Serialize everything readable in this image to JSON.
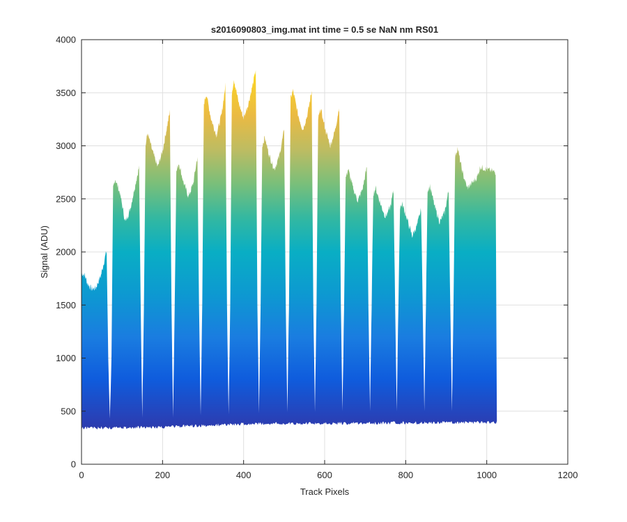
{
  "chart_data": {
    "type": "area",
    "title": "s2016090803_img.mat int time = 0.5 se  NaN nm RS01",
    "xlabel": "Track Pixels",
    "ylabel": "Signal (ADU)",
    "xlim": [
      0,
      1200
    ],
    "ylim": [
      0,
      4000
    ],
    "xticks": [
      0,
      200,
      400,
      600,
      800,
      1000,
      1200
    ],
    "yticks": [
      0,
      500,
      1000,
      1500,
      2000,
      2500,
      3000,
      3500,
      4000
    ],
    "grid": true,
    "colormap": "parula",
    "series": [
      {
        "baseline_values": [
          {
            "x": 0,
            "y": 340
          },
          {
            "x": 200,
            "y": 350
          },
          {
            "x": 400,
            "y": 380
          },
          {
            "x": 600,
            "y": 385
          },
          {
            "x": 800,
            "y": 390
          },
          {
            "x": 1025,
            "y": 395
          }
        ],
        "envelope_values": [
          {
            "x": 0,
            "y": 1800
          },
          {
            "x": 8,
            "y": 1780
          },
          {
            "x": 15,
            "y": 1700
          },
          {
            "x": 25,
            "y": 1650
          },
          {
            "x": 35,
            "y": 1660
          },
          {
            "x": 48,
            "y": 1780
          },
          {
            "x": 58,
            "y": 1950
          },
          {
            "x": 62,
            "y": 2010
          },
          {
            "x": 66,
            "y": 1000
          },
          {
            "x": 70,
            "y": 430
          },
          {
            "x": 74,
            "y": 1000
          },
          {
            "x": 78,
            "y": 2600
          },
          {
            "x": 83,
            "y": 2690
          },
          {
            "x": 95,
            "y": 2550
          },
          {
            "x": 108,
            "y": 2280
          },
          {
            "x": 120,
            "y": 2400
          },
          {
            "x": 132,
            "y": 2620
          },
          {
            "x": 142,
            "y": 2800
          },
          {
            "x": 146,
            "y": 1500
          },
          {
            "x": 150,
            "y": 440
          },
          {
            "x": 154,
            "y": 1500
          },
          {
            "x": 158,
            "y": 3000
          },
          {
            "x": 163,
            "y": 3120
          },
          {
            "x": 175,
            "y": 2950
          },
          {
            "x": 188,
            "y": 2800
          },
          {
            "x": 200,
            "y": 2950
          },
          {
            "x": 212,
            "y": 3200
          },
          {
            "x": 218,
            "y": 3320
          },
          {
            "x": 222,
            "y": 1500
          },
          {
            "x": 226,
            "y": 440
          },
          {
            "x": 230,
            "y": 1500
          },
          {
            "x": 234,
            "y": 2750
          },
          {
            "x": 240,
            "y": 2840
          },
          {
            "x": 252,
            "y": 2650
          },
          {
            "x": 264,
            "y": 2520
          },
          {
            "x": 276,
            "y": 2650
          },
          {
            "x": 286,
            "y": 2900
          },
          {
            "x": 290,
            "y": 1500
          },
          {
            "x": 294,
            "y": 460
          },
          {
            "x": 298,
            "y": 1500
          },
          {
            "x": 302,
            "y": 3400
          },
          {
            "x": 308,
            "y": 3490
          },
          {
            "x": 320,
            "y": 3250
          },
          {
            "x": 333,
            "y": 3100
          },
          {
            "x": 346,
            "y": 3300
          },
          {
            "x": 355,
            "y": 3570
          },
          {
            "x": 359,
            "y": 1500
          },
          {
            "x": 363,
            "y": 470
          },
          {
            "x": 367,
            "y": 1500
          },
          {
            "x": 371,
            "y": 3500
          },
          {
            "x": 376,
            "y": 3630
          },
          {
            "x": 388,
            "y": 3400
          },
          {
            "x": 400,
            "y": 3260
          },
          {
            "x": 412,
            "y": 3400
          },
          {
            "x": 424,
            "y": 3600
          },
          {
            "x": 430,
            "y": 3720
          },
          {
            "x": 434,
            "y": 1500
          },
          {
            "x": 438,
            "y": 480
          },
          {
            "x": 442,
            "y": 1500
          },
          {
            "x": 446,
            "y": 3000
          },
          {
            "x": 452,
            "y": 3080
          },
          {
            "x": 464,
            "y": 2900
          },
          {
            "x": 476,
            "y": 2780
          },
          {
            "x": 488,
            "y": 2900
          },
          {
            "x": 500,
            "y": 3150
          },
          {
            "x": 504,
            "y": 1500
          },
          {
            "x": 508,
            "y": 490
          },
          {
            "x": 512,
            "y": 1500
          },
          {
            "x": 516,
            "y": 3450
          },
          {
            "x": 522,
            "y": 3520
          },
          {
            "x": 534,
            "y": 3300
          },
          {
            "x": 546,
            "y": 3150
          },
          {
            "x": 558,
            "y": 3300
          },
          {
            "x": 568,
            "y": 3520
          },
          {
            "x": 572,
            "y": 1500
          },
          {
            "x": 576,
            "y": 490
          },
          {
            "x": 580,
            "y": 1500
          },
          {
            "x": 584,
            "y": 3250
          },
          {
            "x": 590,
            "y": 3350
          },
          {
            "x": 602,
            "y": 3150
          },
          {
            "x": 614,
            "y": 3000
          },
          {
            "x": 626,
            "y": 3150
          },
          {
            "x": 636,
            "y": 3370
          },
          {
            "x": 640,
            "y": 1500
          },
          {
            "x": 644,
            "y": 500
          },
          {
            "x": 648,
            "y": 1500
          },
          {
            "x": 652,
            "y": 2700
          },
          {
            "x": 658,
            "y": 2780
          },
          {
            "x": 670,
            "y": 2600
          },
          {
            "x": 682,
            "y": 2480
          },
          {
            "x": 694,
            "y": 2600
          },
          {
            "x": 704,
            "y": 2800
          },
          {
            "x": 708,
            "y": 1500
          },
          {
            "x": 712,
            "y": 500
          },
          {
            "x": 716,
            "y": 1500
          },
          {
            "x": 720,
            "y": 2550
          },
          {
            "x": 726,
            "y": 2600
          },
          {
            "x": 738,
            "y": 2450
          },
          {
            "x": 750,
            "y": 2330
          },
          {
            "x": 762,
            "y": 2420
          },
          {
            "x": 770,
            "y": 2580
          },
          {
            "x": 774,
            "y": 1500
          },
          {
            "x": 778,
            "y": 500
          },
          {
            "x": 782,
            "y": 1500
          },
          {
            "x": 786,
            "y": 2420
          },
          {
            "x": 792,
            "y": 2450
          },
          {
            "x": 804,
            "y": 2300
          },
          {
            "x": 816,
            "y": 2150
          },
          {
            "x": 828,
            "y": 2250
          },
          {
            "x": 838,
            "y": 2400
          },
          {
            "x": 842,
            "y": 1500
          },
          {
            "x": 846,
            "y": 500
          },
          {
            "x": 850,
            "y": 1500
          },
          {
            "x": 854,
            "y": 2580
          },
          {
            "x": 860,
            "y": 2620
          },
          {
            "x": 872,
            "y": 2420
          },
          {
            "x": 884,
            "y": 2280
          },
          {
            "x": 896,
            "y": 2370
          },
          {
            "x": 906,
            "y": 2580
          },
          {
            "x": 910,
            "y": 1500
          },
          {
            "x": 914,
            "y": 500
          },
          {
            "x": 918,
            "y": 1500
          },
          {
            "x": 922,
            "y": 2900
          },
          {
            "x": 928,
            "y": 2980
          },
          {
            "x": 940,
            "y": 2750
          },
          {
            "x": 952,
            "y": 2600
          },
          {
            "x": 964,
            "y": 2650
          },
          {
            "x": 976,
            "y": 2700
          },
          {
            "x": 984,
            "y": 2800
          },
          {
            "x": 1022,
            "y": 2750
          },
          {
            "x": 1025,
            "y": 400
          }
        ]
      }
    ]
  }
}
